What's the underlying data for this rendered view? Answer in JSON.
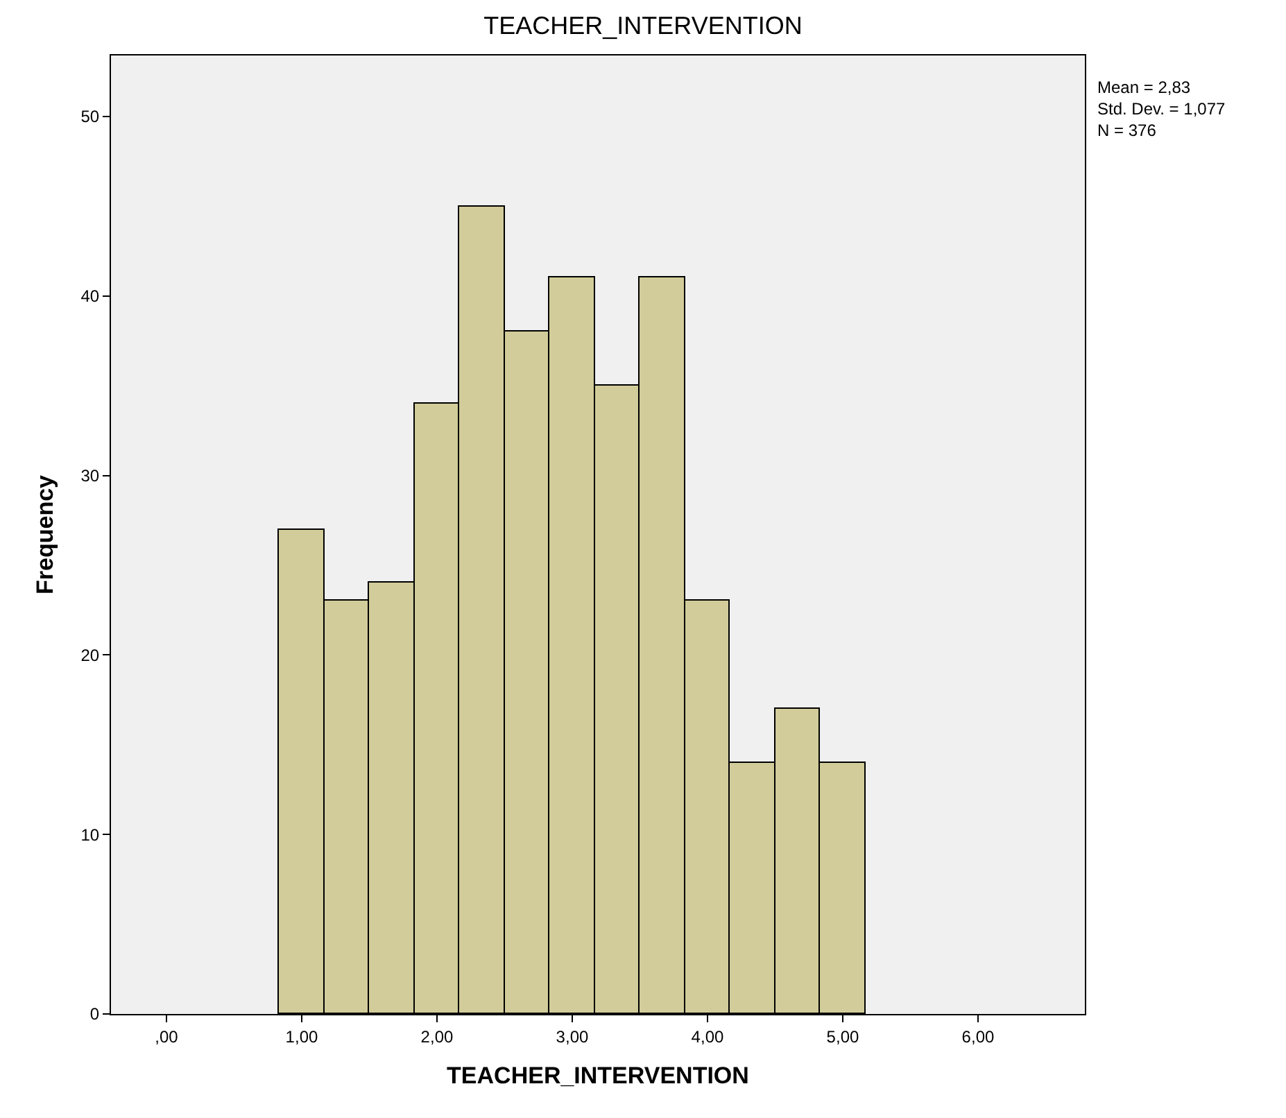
{
  "chart_data": {
    "type": "histogram",
    "title": "TEACHER_INTERVENTION",
    "xlabel": "TEACHER_INTERVENTION",
    "ylabel": "Frequency",
    "bins": [
      0.8333,
      1.1667,
      1.5,
      1.8333,
      2.1667,
      2.5,
      2.8333,
      3.1667,
      3.5,
      3.8333,
      4.1667,
      4.5,
      4.8333,
      5.1667
    ],
    "values": [
      27,
      23,
      24,
      34,
      45,
      38,
      41,
      35,
      41,
      23,
      14,
      17,
      14
    ],
    "color": "#d2cc9a",
    "xlim": [
      -0.41,
      6.79
    ],
    "xticks": [
      {
        "value": 0,
        "label": ",00"
      },
      {
        "value": 1,
        "label": "1,00"
      },
      {
        "value": 2,
        "label": "2,00"
      },
      {
        "value": 3,
        "label": "3,00"
      },
      {
        "value": 4,
        "label": "4,00"
      },
      {
        "value": 5,
        "label": "5,00"
      },
      {
        "value": 6,
        "label": "6,00"
      }
    ],
    "ylim": [
      0,
      53.4
    ],
    "yticks": [
      0,
      10,
      20,
      30,
      40,
      50
    ],
    "grid": false,
    "annotations": [
      "Mean = 2,83\nStd. Dev. = 1,077\nN = 376"
    ]
  }
}
